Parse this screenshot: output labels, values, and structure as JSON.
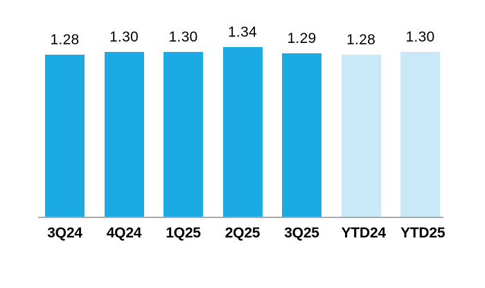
{
  "chart_data": {
    "type": "bar",
    "title": "",
    "xlabel": "",
    "ylabel": "",
    "categories": [
      "3Q24",
      "4Q24",
      "1Q25",
      "2Q25",
      "3Q25",
      "YTD24",
      "YTD25"
    ],
    "values": [
      1.28,
      1.3,
      1.3,
      1.34,
      1.29,
      1.28,
      1.3
    ],
    "value_labels": [
      "1.28",
      "1.30",
      "1.30",
      "1.34",
      "1.29",
      "1.28",
      "1.30"
    ],
    "bar_colors": [
      "#1babe2",
      "#1babe2",
      "#1babe2",
      "#1babe2",
      "#1babe2",
      "#c9e8f8",
      "#c9e8f8"
    ],
    "ylim": [
      0,
      1.4
    ],
    "grid": false,
    "legend": "none",
    "axis_line_color": "#a7a9ac"
  }
}
